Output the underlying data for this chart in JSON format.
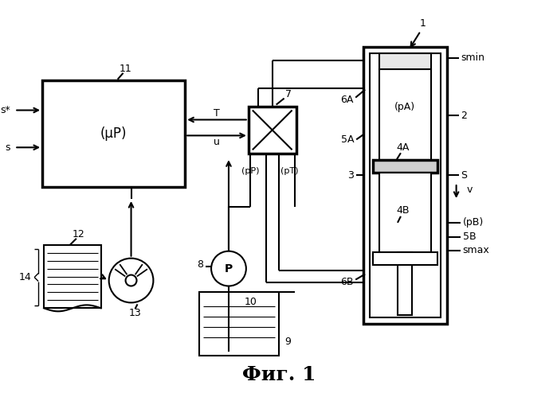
{
  "title": "Фиг. 1",
  "title_font": "DejaVu Serif",
  "title_fontsize": 18,
  "bg_color": "#ffffff",
  "line_color": "#000000",
  "lw": 1.5,
  "lw_thick": 2.5,
  "labels": {
    "mu_P": "(μP)",
    "pA": "(pA)",
    "pB": "(pB)",
    "pP": "(pP)",
    "pT": "(pT)",
    "P": "P",
    "label_1": "1",
    "label_2": "2",
    "label_3": "3",
    "label_4A": "4A",
    "label_4B": "4B",
    "label_5A": "5A",
    "label_5B": "5B",
    "label_6A": "6A",
    "label_6B": "6B",
    "label_7": "7",
    "label_8": "8",
    "label_9": "9",
    "label_10": "10",
    "label_11": "11",
    "label_12": "12",
    "label_13": "13",
    "label_14": "14",
    "smin": "smin",
    "smax": "smax",
    "s_label": "S",
    "v_label": "v",
    "s_star": "s*",
    "s_in": "s",
    "T_label": "T",
    "u_label": "u"
  }
}
